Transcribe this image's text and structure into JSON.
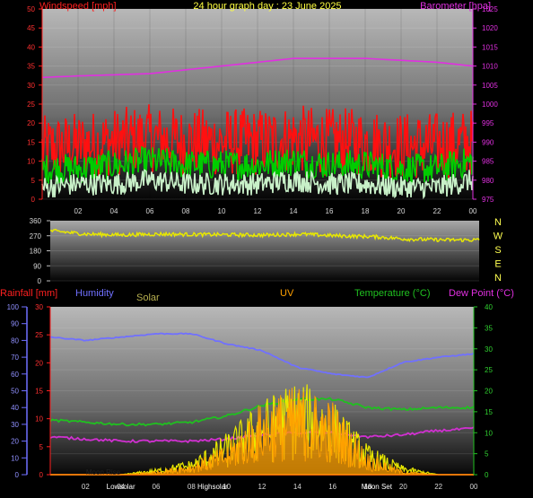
{
  "panel1": {
    "title": "24 hour graph day : 23 June 2025",
    "left_label": "Windspeed [mph]",
    "right_label": "Barometer [hpa]",
    "left_ticks": [
      "0",
      "5",
      "10",
      "15",
      "20",
      "25",
      "30",
      "35",
      "40",
      "45",
      "50"
    ],
    "right_ticks": [
      "975",
      "980",
      "985",
      "990",
      "995",
      "1000",
      "1005",
      "1010",
      "1015",
      "1020",
      "1025"
    ],
    "x_ticks": [
      "02",
      "04",
      "06",
      "08",
      "10",
      "12",
      "14",
      "16",
      "18",
      "20",
      "22",
      "00"
    ]
  },
  "panel2": {
    "left_ticks": [
      "0",
      "90",
      "180",
      "270",
      "360"
    ],
    "compass": [
      "N",
      "W",
      "S",
      "E",
      "N"
    ]
  },
  "panel3": {
    "labels": {
      "rain": "Rainfall [mm]",
      "humidity": "Humidity",
      "solar": "Solar",
      "uv": "UV",
      "temp": "Temperature (°C)",
      "dew": "Dew Point (°C)"
    },
    "humidity_ticks": [
      "0",
      "10",
      "20",
      "30",
      "40",
      "50",
      "60",
      "70",
      "80",
      "90",
      "100"
    ],
    "rain_ticks": [
      "0",
      "5",
      "10",
      "15",
      "20",
      "25",
      "30"
    ],
    "temp_ticks": [
      "0",
      "5",
      "10",
      "15",
      "20",
      "25",
      "30",
      "35",
      "40"
    ],
    "x_ticks": [
      "02",
      "04",
      "06",
      "08",
      "10",
      "12",
      "14",
      "16",
      "18",
      "20",
      "22",
      "00"
    ],
    "events": [
      "Lowsolar",
      "Moon Rise",
      "Highsolar",
      "Moon Set"
    ]
  },
  "colors": {
    "wind_gust": "#ff1010",
    "wind_avg": "#00cc00",
    "wind_speed": "#c8f0c8",
    "barometer": "#e030e0",
    "direction": "#e8e800",
    "humidity": "#7070ff",
    "temperature": "#20c020",
    "dewpoint": "#d030d0",
    "solar": "#e8e800",
    "uv": "#ffa000",
    "rain": "#ff2020"
  },
  "chart_data": [
    {
      "type": "line",
      "title": "24 hour graph day : 23 June 2025",
      "x_hours": [
        0,
        2,
        4,
        6,
        8,
        10,
        12,
        14,
        16,
        18,
        20,
        22,
        24
      ],
      "y_left_label": "Windspeed [mph]",
      "y_left_range": [
        0,
        50
      ],
      "y_right_label": "Barometer [hpa]",
      "y_right_range": [
        975,
        1025
      ],
      "series": [
        {
          "axis": "left",
          "values": [
            13,
            14,
            15,
            16,
            15,
            15,
            15,
            16,
            15,
            15,
            14,
            14,
            15
          ]
        },
        {
          "axis": "left",
          "values": [
            8,
            8,
            9,
            10,
            9,
            9,
            9,
            10,
            9,
            9,
            8,
            8,
            10
          ]
        },
        {
          "axis": "left",
          "values": [
            3,
            4,
            4,
            5,
            4,
            4,
            4,
            5,
            4,
            4,
            3,
            3,
            5
          ]
        },
        {
          "axis": "right",
          "values": [
            1007,
            1007.4,
            1007.7,
            1008,
            1009,
            1010,
            1011,
            1012,
            1012,
            1012,
            1011.5,
            1011,
            1010
          ]
        }
      ]
    },
    {
      "type": "line",
      "y_range": [
        0,
        360
      ],
      "x_hours": [
        0,
        2,
        4,
        6,
        8,
        10,
        12,
        14,
        16,
        18,
        20,
        22,
        24
      ],
      "series": [
        {
          "values": [
            300,
            280,
            275,
            280,
            278,
            276,
            274,
            280,
            270,
            265,
            250,
            245,
            245
          ]
        }
      ]
    },
    {
      "type": "line",
      "x_hours": [
        0,
        2,
        4,
        6,
        8,
        10,
        12,
        14,
        16,
        18,
        20,
        22,
        24
      ],
      "series": [
        {
          "axis": "humidity",
          "range": [
            0,
            100
          ],
          "values": [
            82,
            80,
            82,
            84,
            84,
            78,
            74,
            64,
            60,
            58,
            67,
            70,
            72
          ]
        },
        {
          "axis": "temp",
          "range": [
            0,
            40
          ],
          "values": [
            13,
            12.5,
            12,
            12,
            12.5,
            14,
            16.5,
            18,
            18,
            16,
            15.5,
            16,
            16
          ]
        },
        {
          "axis": "temp",
          "range": [
            0,
            40
          ],
          "values": [
            9,
            8.5,
            8,
            8,
            8,
            8.5,
            9.5,
            10,
            10,
            9,
            9.5,
            10.5,
            11
          ]
        },
        {
          "axis": "rain",
          "range": [
            0,
            30
          ],
          "values": [
            0,
            0,
            0,
            0,
            0,
            0,
            0,
            0,
            0,
            0,
            0,
            0,
            0
          ]
        },
        {
          "axis": "humidity",
          "range": [
            0,
            100
          ],
          "values": [
            0,
            0,
            0,
            2,
            5,
            14,
            25,
            32,
            25,
            10,
            3,
            0,
            0
          ]
        },
        {
          "axis": "temp",
          "range": [
            0,
            40
          ],
          "values": [
            0,
            0,
            0,
            0.5,
            1.5,
            4,
            10,
            12,
            10,
            3,
            0.5,
            0,
            0
          ]
        }
      ]
    }
  ]
}
